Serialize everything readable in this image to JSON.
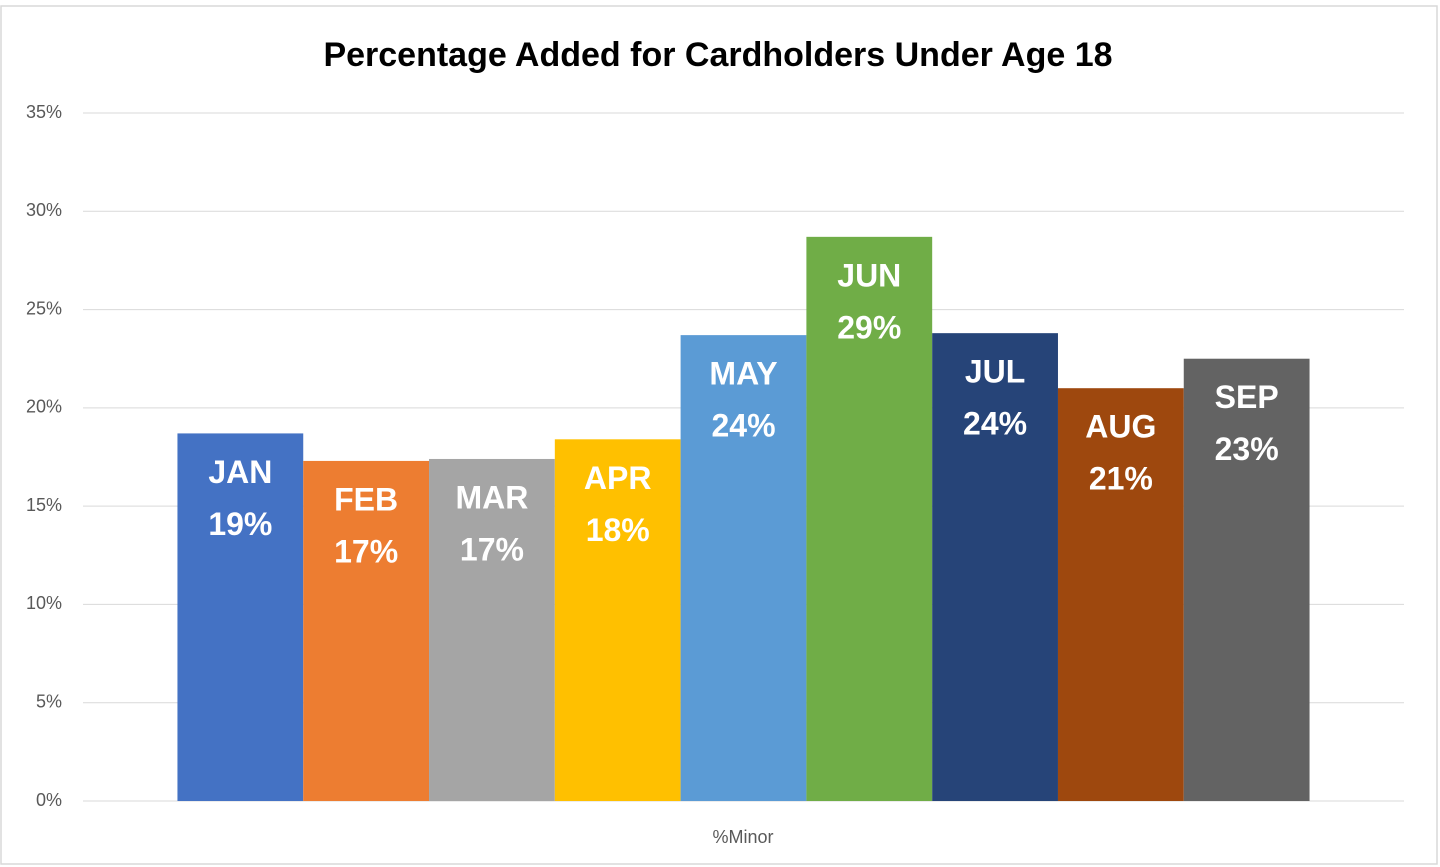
{
  "chart_data": {
    "type": "bar",
    "title": "Percentage Added for Cardholders Under Age 18",
    "categories": [
      "%Minor"
    ],
    "series": [
      {
        "name": "JAN",
        "color": "#4472c4",
        "values": [
          18.7
        ],
        "value_labels": [
          "19%"
        ]
      },
      {
        "name": "FEB",
        "color": "#ed7d31",
        "values": [
          17.3
        ],
        "value_labels": [
          "17%"
        ]
      },
      {
        "name": "MAR",
        "color": "#a5a5a5",
        "values": [
          17.4
        ],
        "value_labels": [
          "17%"
        ]
      },
      {
        "name": "APR",
        "color": "#ffc000",
        "values": [
          18.4
        ],
        "value_labels": [
          "18%"
        ]
      },
      {
        "name": "MAY",
        "color": "#5b9bd5",
        "values": [
          23.7
        ],
        "value_labels": [
          "24%"
        ]
      },
      {
        "name": "JUN",
        "color": "#70ad47",
        "values": [
          28.7
        ],
        "value_labels": [
          "29%"
        ]
      },
      {
        "name": "JUL",
        "color": "#264478",
        "values": [
          23.8
        ],
        "value_labels": [
          "24%"
        ]
      },
      {
        "name": "AUG",
        "color": "#9e480e",
        "values": [
          21.0
        ],
        "value_labels": [
          "21%"
        ]
      },
      {
        "name": "SEP",
        "color": "#636363",
        "values": [
          22.5
        ],
        "value_labels": [
          "23%"
        ]
      }
    ],
    "ylim": [
      0,
      35
    ],
    "yticks": [
      {
        "value": 0,
        "label": "0%"
      },
      {
        "value": 5,
        "label": "5%"
      },
      {
        "value": 10,
        "label": "10%"
      },
      {
        "value": 15,
        "label": "15%"
      },
      {
        "value": 20,
        "label": "20%"
      },
      {
        "value": 25,
        "label": "25%"
      },
      {
        "value": 30,
        "label": "30%"
      },
      {
        "value": 35,
        "label": "35%"
      }
    ],
    "grid": true
  }
}
